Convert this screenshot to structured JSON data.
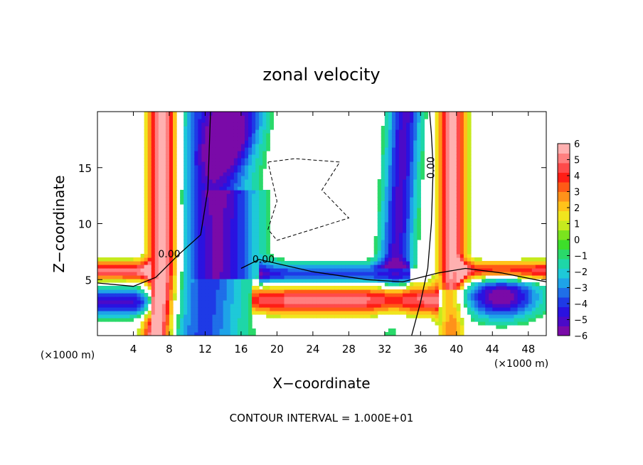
{
  "chart_data": {
    "type": "heatmap",
    "title": "zonal velocity",
    "xlabel": "X−coordinate",
    "ylabel": "Z−coordinate",
    "x_unit_label": "(×1000 m)",
    "y_unit_label": "(×1000 m)",
    "footer": "CONTOUR INTERVAL = 1.000E+01",
    "xlim": [
      0,
      50
    ],
    "ylim": [
      0,
      20
    ],
    "x_ticks": [
      4,
      8,
      12,
      16,
      20,
      24,
      28,
      32,
      36,
      40,
      44,
      48
    ],
    "x_tick_labels": [
      "4",
      "8",
      "12",
      "16",
      "20",
      "24",
      "28",
      "32",
      "36",
      "40",
      "44",
      "48"
    ],
    "y_ticks": [
      5,
      10,
      15
    ],
    "y_tick_labels": [
      "5",
      "10",
      "15"
    ],
    "contour_labels": [
      {
        "text": "0.00",
        "x": 8,
        "z": 7
      },
      {
        "text": "0.00",
        "x": 18.5,
        "z": 6.5
      },
      {
        "text": "0.00",
        "x": 37.5,
        "z": 15
      }
    ],
    "colorbar": {
      "min": -6,
      "max": 6,
      "tick_labels": [
        "6",
        "5",
        "4",
        "3",
        "2",
        "1",
        "0",
        "−1",
        "−2",
        "−3",
        "−4",
        "−5",
        "−6"
      ],
      "colors": [
        "#7a0aa8",
        "#4b0ac8",
        "#2a12e0",
        "#1e3ae6",
        "#1f6fe8",
        "#1ea3e8",
        "#1ec9d8",
        "#1ed6a8",
        "#2ad96a",
        "#3ddf2a",
        "#7ae31e",
        "#c6ea1e",
        "#f0e51e",
        "#ffc21a",
        "#ff921a",
        "#ff5a16",
        "#ff1e16",
        "#ff4a4a",
        "#ff7f7f",
        "#ffb0b0"
      ]
    }
  }
}
